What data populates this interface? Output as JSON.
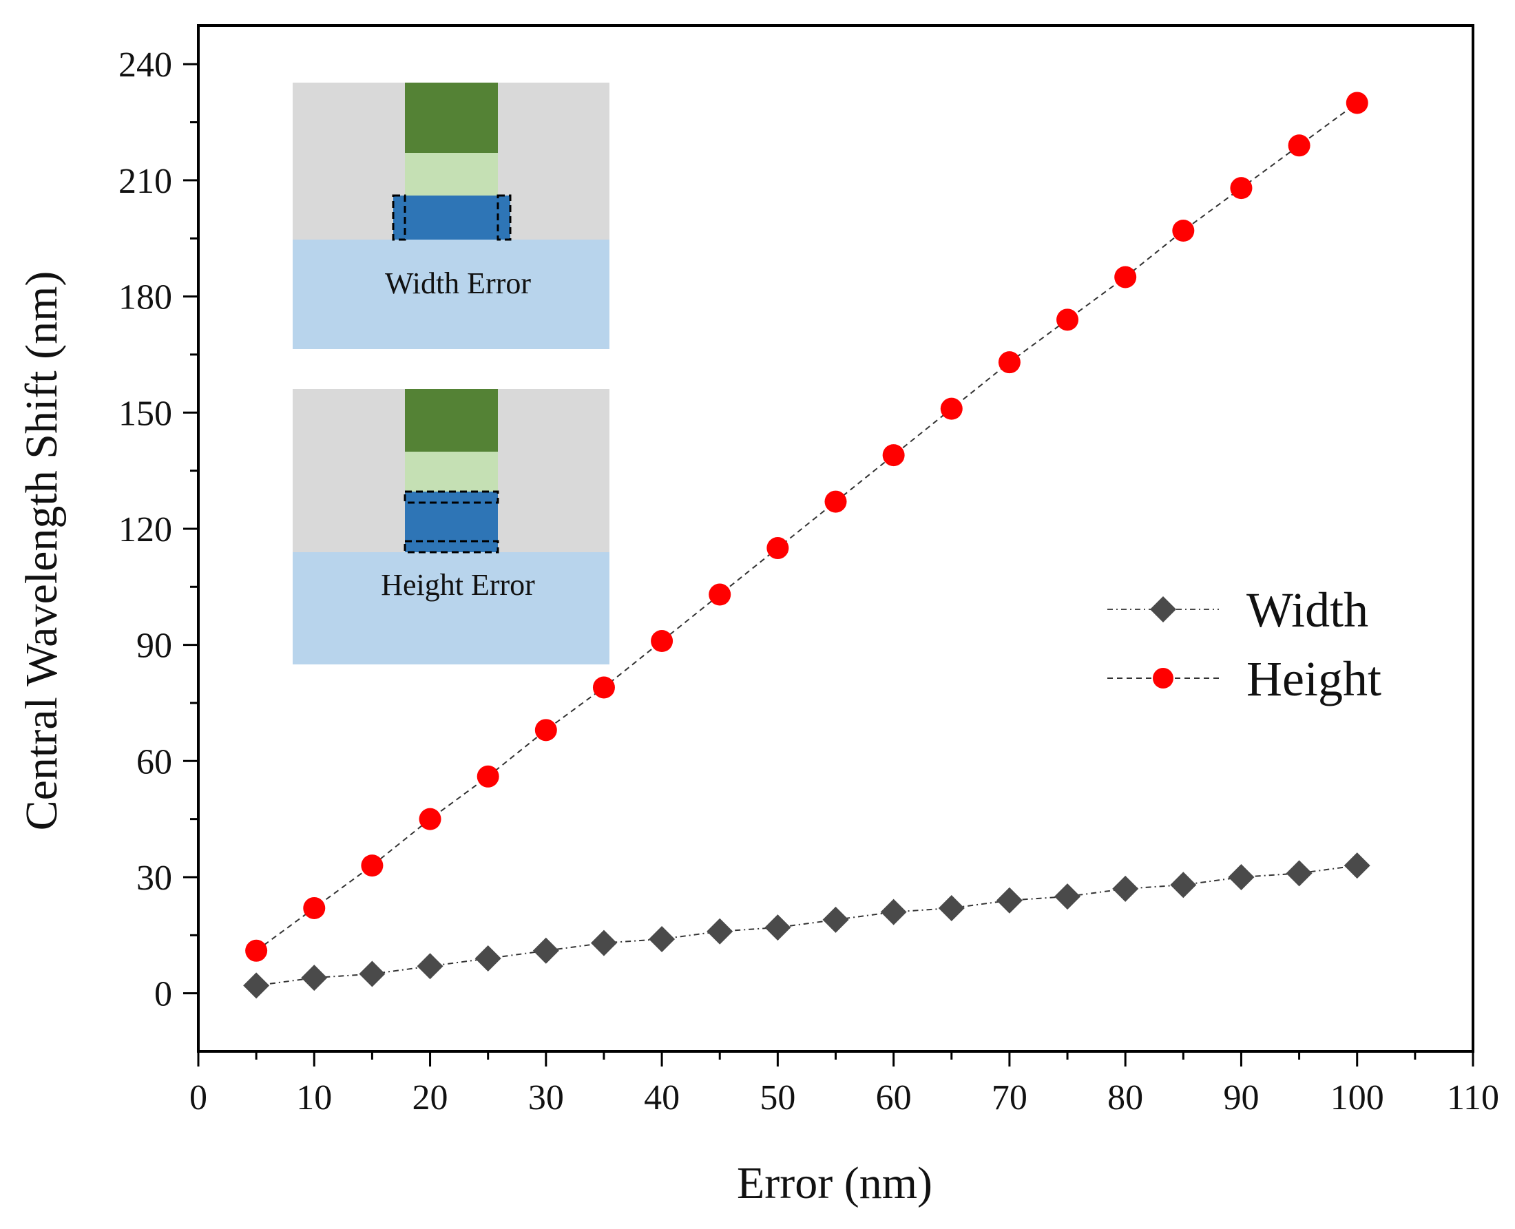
{
  "chart_data": {
    "type": "scatter",
    "xlabel": "Error (nm)",
    "ylabel": "Central Wavelength Shift (nm)",
    "xlim": [
      0,
      110
    ],
    "ylim": [
      -15,
      250
    ],
    "x_ticks": [
      0,
      10,
      20,
      30,
      40,
      50,
      60,
      70,
      80,
      90,
      100,
      110
    ],
    "y_ticks": [
      0,
      30,
      60,
      90,
      120,
      150,
      180,
      210,
      240
    ],
    "x_tick_labels": [
      "0",
      "10",
      "20",
      "30",
      "40",
      "50",
      "60",
      "70",
      "80",
      "90",
      "100",
      "110"
    ],
    "y_tick_labels": [
      "0",
      "30",
      "60",
      "90",
      "120",
      "150",
      "180",
      "210",
      "240"
    ],
    "x": [
      5,
      10,
      15,
      20,
      25,
      30,
      35,
      40,
      45,
      50,
      55,
      60,
      65,
      70,
      75,
      80,
      85,
      90,
      95,
      100
    ],
    "series": [
      {
        "name": "Width",
        "marker": "diamond",
        "line": "dash-dot",
        "color": "#4a4a4a",
        "values": [
          2,
          4,
          5,
          7,
          9,
          11,
          13,
          14,
          16,
          17,
          19,
          21,
          22,
          24,
          25,
          27,
          28,
          30,
          31,
          33
        ]
      },
      {
        "name": "Height",
        "marker": "circle",
        "line": "dashed",
        "color": "#ff0000",
        "values": [
          11,
          22,
          33,
          45,
          56,
          68,
          79,
          91,
          103,
          115,
          127,
          139,
          151,
          163,
          174,
          185,
          197,
          208,
          219,
          230
        ]
      }
    ],
    "legend_position": "right-middle",
    "grid": false,
    "insets": [
      {
        "label": "Width Error"
      },
      {
        "label": "Height Error"
      }
    ],
    "inset_colors": {
      "background": "#d9d9d9",
      "substrate": "#b8d4ec",
      "top_block": "#548235",
      "middle_block": "#c5e0b4",
      "core_block": "#2e75b6"
    }
  }
}
